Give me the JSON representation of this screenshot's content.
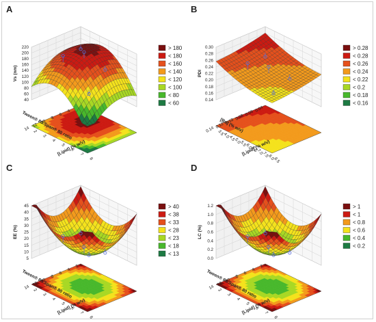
{
  "figure": {
    "colors": {
      "dark_red": "#7a0f0f",
      "red": "#cc1a12",
      "orange_red": "#e5501c",
      "orange": "#f39a1c",
      "yellow": "#f4e21c",
      "yellow_green": "#a8d824",
      "green": "#48b82c",
      "dark_green": "#1d7a43",
      "dot_color": "#5a6ed8"
    }
  },
  "chart_data": [
    {
      "panel": "A",
      "type": "surface3d",
      "zlabel": "Vs (nm)",
      "xlabel": "[Lipid] (% w/v)",
      "ylabel": "Tween® 80:Span® 80 ratio",
      "z_ticks": [
        "40",
        "60",
        "80",
        "100",
        "120",
        "140",
        "160",
        "180",
        "200",
        "220"
      ],
      "x_ticks": [
        "2",
        "3",
        "4",
        "5",
        "6",
        "7",
        "8"
      ],
      "y_ticks": [
        "2",
        "4",
        "6",
        "8",
        "10",
        "12",
        "14"
      ],
      "legend": [
        "> 180",
        "< 180",
        "< 160",
        "< 140",
        "< 120",
        "< 100",
        "< 80",
        "< 60"
      ],
      "zlim": [
        40,
        220
      ],
      "surface_shape": "dome"
    },
    {
      "panel": "B",
      "type": "surface3d",
      "zlabel": "PDI",
      "xlabel": "[Lipid] (% w/v)",
      "ylabel": "[Bu] (% w/v)",
      "z_ticks": [
        "0.14",
        "0.16",
        "0.18",
        "0.20",
        "0.22",
        "0.24",
        "0.26",
        "0.28",
        "0.30"
      ],
      "x_ticks": [
        "3.5",
        "4.0",
        "4.5",
        "5.0",
        "5.5",
        "6.0",
        "6.5",
        "7.0",
        "7.5",
        "8.0",
        "8.5"
      ],
      "y_ticks": [
        "0.04",
        "0.06",
        "0.08",
        "0.10",
        "0.12",
        "0.14"
      ],
      "legend": [
        "> 0.28",
        "< 0.28",
        "< 0.26",
        "< 0.24",
        "< 0.22",
        "< 0.2",
        "< 0.18",
        "< 0.16"
      ],
      "zlim": [
        0.14,
        0.3
      ],
      "surface_shape": "slope"
    },
    {
      "panel": "C",
      "type": "surface3d",
      "zlabel": "EE (%)",
      "xlabel": "[Lipid] (% w/v)",
      "ylabel": "Tween® 80:Span® 80 ratio",
      "z_ticks": [
        "5",
        "10",
        "15",
        "20",
        "25",
        "30",
        "35",
        "40",
        "45"
      ],
      "x_ticks": [
        "2",
        "3",
        "4",
        "5",
        "6",
        "7",
        "8"
      ],
      "y_ticks": [
        "2",
        "4",
        "6",
        "8",
        "10",
        "12",
        "14"
      ],
      "legend": [
        "> 40",
        "< 38",
        "< 33",
        "< 28",
        "< 23",
        "< 18",
        "< 13"
      ],
      "zlim": [
        5,
        45
      ],
      "surface_shape": "bowl"
    },
    {
      "panel": "D",
      "type": "surface3d",
      "zlabel": "LC (%)",
      "xlabel": "[Lipid] (% w/v)",
      "ylabel": "Tween® 80:Span® 80 ratio",
      "z_ticks": [
        "0.0",
        "0.2",
        "0.4",
        "0.6",
        "0.8",
        "1.0",
        "1.2"
      ],
      "x_ticks": [
        "2",
        "3",
        "4",
        "5",
        "6",
        "7",
        "8"
      ],
      "y_ticks": [
        "2",
        "4",
        "6",
        "8",
        "10",
        "12",
        "14"
      ],
      "legend": [
        "> 1",
        "< 1",
        "< 0.8",
        "< 0.6",
        "< 0.4",
        "< 0.2"
      ],
      "zlim": [
        0,
        1.2
      ],
      "surface_shape": "bowl"
    }
  ]
}
